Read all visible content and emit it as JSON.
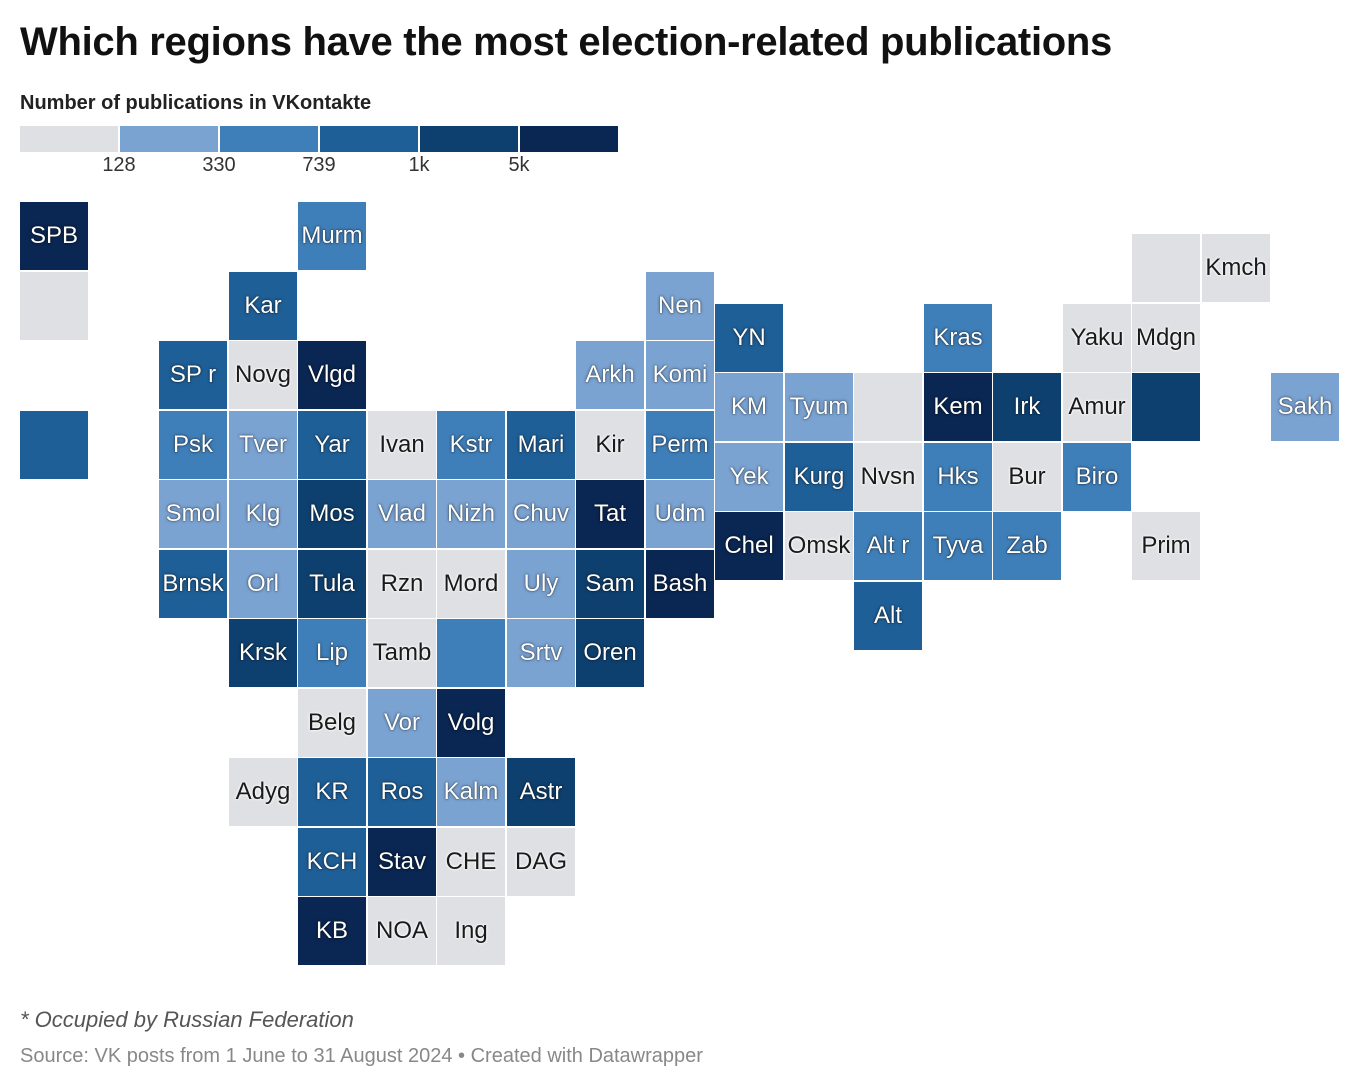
{
  "title": "Which regions have the most election-related publications",
  "legend": {
    "title": "Number of publications in VKontakte",
    "bins": [
      {
        "color": "#dfe0e4"
      },
      {
        "color": "#7aa3d2"
      },
      {
        "color": "#3f7fb9"
      },
      {
        "color": "#1f5f97"
      },
      {
        "color": "#0e406f"
      },
      {
        "color": "#0a2652"
      }
    ],
    "ticks": [
      "128",
      "330",
      "739",
      "1k",
      "5k"
    ]
  },
  "regions": [
    {
      "label": "SPB",
      "bin": 5,
      "col": 0,
      "row": 0,
      "dy": 0
    },
    {
      "label": "",
      "bin": 0,
      "col": 0,
      "row": 1,
      "dy": 0
    },
    {
      "label": "",
      "bin": 3,
      "col": 0,
      "row": 3,
      "dy": 0
    },
    {
      "label": "Murm",
      "bin": 2,
      "col": 4,
      "row": 0,
      "dy": 0
    },
    {
      "label": "Kar",
      "bin": 3,
      "col": 3,
      "row": 1,
      "dy": 0
    },
    {
      "label": "SP r",
      "bin": 3,
      "col": 2,
      "row": 2,
      "dy": 0
    },
    {
      "label": "Novg",
      "bin": 0,
      "col": 3,
      "row": 2,
      "dy": 0
    },
    {
      "label": "Vlgd",
      "bin": 5,
      "col": 4,
      "row": 2,
      "dy": 0
    },
    {
      "label": "Psk",
      "bin": 2,
      "col": 2,
      "row": 3,
      "dy": 0
    },
    {
      "label": "Tver",
      "bin": 1,
      "col": 3,
      "row": 3,
      "dy": 0
    },
    {
      "label": "Yar",
      "bin": 3,
      "col": 4,
      "row": 3,
      "dy": 0
    },
    {
      "label": "Ivan",
      "bin": 0,
      "col": 5,
      "row": 3,
      "dy": 0
    },
    {
      "label": "Kstr",
      "bin": 2,
      "col": 6,
      "row": 3,
      "dy": 0
    },
    {
      "label": "Mari",
      "bin": 3,
      "col": 7,
      "row": 3,
      "dy": 0
    },
    {
      "label": "Kir",
      "bin": 0,
      "col": 8,
      "row": 3,
      "dy": 0
    },
    {
      "label": "Perm",
      "bin": 2,
      "col": 9,
      "row": 3,
      "dy": 0
    },
    {
      "label": "Arkh",
      "bin": 1,
      "col": 8,
      "row": 2,
      "dy": 0
    },
    {
      "label": "Komi",
      "bin": 1,
      "col": 9,
      "row": 2,
      "dy": 0
    },
    {
      "label": "Nen",
      "bin": 1,
      "col": 9,
      "row": 1,
      "dy": 0
    },
    {
      "label": "Smol",
      "bin": 1,
      "col": 2,
      "row": 4,
      "dy": 0
    },
    {
      "label": "Klg",
      "bin": 1,
      "col": 3,
      "row": 4,
      "dy": 0
    },
    {
      "label": "Mos",
      "bin": 4,
      "col": 4,
      "row": 4,
      "dy": 0
    },
    {
      "label": "Vlad",
      "bin": 1,
      "col": 5,
      "row": 4,
      "dy": 0
    },
    {
      "label": "Nizh",
      "bin": 1,
      "col": 6,
      "row": 4,
      "dy": 0
    },
    {
      "label": "Chuv",
      "bin": 1,
      "col": 7,
      "row": 4,
      "dy": 0
    },
    {
      "label": "Tat",
      "bin": 5,
      "col": 8,
      "row": 4,
      "dy": 0
    },
    {
      "label": "Udm",
      "bin": 1,
      "col": 9,
      "row": 4,
      "dy": 0
    },
    {
      "label": "Brnsk",
      "bin": 3,
      "col": 2,
      "row": 5,
      "dy": 0
    },
    {
      "label": "Orl",
      "bin": 1,
      "col": 3,
      "row": 5,
      "dy": 0
    },
    {
      "label": "Tula",
      "bin": 4,
      "col": 4,
      "row": 5,
      "dy": 0
    },
    {
      "label": "Rzn",
      "bin": 0,
      "col": 5,
      "row": 5,
      "dy": 0
    },
    {
      "label": "Mord",
      "bin": 0,
      "col": 6,
      "row": 5,
      "dy": 0
    },
    {
      "label": "Uly",
      "bin": 1,
      "col": 7,
      "row": 5,
      "dy": 0
    },
    {
      "label": "Sam",
      "bin": 4,
      "col": 8,
      "row": 5,
      "dy": 0
    },
    {
      "label": "Bash",
      "bin": 5,
      "col": 9,
      "row": 5,
      "dy": 0
    },
    {
      "label": "Krsk",
      "bin": 4,
      "col": 3,
      "row": 6,
      "dy": 0
    },
    {
      "label": "Lip",
      "bin": 2,
      "col": 4,
      "row": 6,
      "dy": 0
    },
    {
      "label": "Tamb",
      "bin": 0,
      "col": 5,
      "row": 6,
      "dy": 0
    },
    {
      "label": "",
      "bin": 2,
      "col": 6,
      "row": 6,
      "dy": 0
    },
    {
      "label": "Srtv",
      "bin": 1,
      "col": 7,
      "row": 6,
      "dy": 0
    },
    {
      "label": "Oren",
      "bin": 4,
      "col": 8,
      "row": 6,
      "dy": 0
    },
    {
      "label": "Belg",
      "bin": 0,
      "col": 4,
      "row": 7,
      "dy": 0
    },
    {
      "label": "Vor",
      "bin": 1,
      "col": 5,
      "row": 7,
      "dy": 0
    },
    {
      "label": "Volg",
      "bin": 5,
      "col": 6,
      "row": 7,
      "dy": 0
    },
    {
      "label": "Adyg",
      "bin": 0,
      "col": 3,
      "row": 8,
      "dy": 0
    },
    {
      "label": "KR",
      "bin": 3,
      "col": 4,
      "row": 8,
      "dy": 0
    },
    {
      "label": "Ros",
      "bin": 3,
      "col": 5,
      "row": 8,
      "dy": 0
    },
    {
      "label": "Kalm",
      "bin": 1,
      "col": 6,
      "row": 8,
      "dy": 0
    },
    {
      "label": "Astr",
      "bin": 4,
      "col": 7,
      "row": 8,
      "dy": 0
    },
    {
      "label": "KCH",
      "bin": 3,
      "col": 4,
      "row": 9,
      "dy": 0
    },
    {
      "label": "Stav",
      "bin": 5,
      "col": 5,
      "row": 9,
      "dy": 0
    },
    {
      "label": "CHE",
      "bin": 0,
      "col": 6,
      "row": 9,
      "dy": 0
    },
    {
      "label": "DAG",
      "bin": 0,
      "col": 7,
      "row": 9,
      "dy": 0
    },
    {
      "label": "KB",
      "bin": 5,
      "col": 4,
      "row": 10,
      "dy": 0
    },
    {
      "label": "NOA",
      "bin": 0,
      "col": 5,
      "row": 10,
      "dy": 0
    },
    {
      "label": "Ing",
      "bin": 0,
      "col": 6,
      "row": 10,
      "dy": 0
    },
    {
      "label": "YN",
      "bin": 3,
      "col": 10,
      "row": 1,
      "dy": 1
    },
    {
      "label": "KM",
      "bin": 1,
      "col": 10,
      "row": 2,
      "dy": 1
    },
    {
      "label": "Tyum",
      "bin": 1,
      "col": 11,
      "row": 2,
      "dy": 1
    },
    {
      "label": "",
      "bin": 0,
      "col": 12,
      "row": 2,
      "dy": 1
    },
    {
      "label": "Yek",
      "bin": 1,
      "col": 10,
      "row": 3,
      "dy": 1
    },
    {
      "label": "Kurg",
      "bin": 3,
      "col": 11,
      "row": 3,
      "dy": 1
    },
    {
      "label": "Nvsn",
      "bin": 0,
      "col": 12,
      "row": 3,
      "dy": 1
    },
    {
      "label": "Chel",
      "bin": 5,
      "col": 10,
      "row": 4,
      "dy": 1
    },
    {
      "label": "Omsk",
      "bin": 0,
      "col": 11,
      "row": 4,
      "dy": 1
    },
    {
      "label": "Alt r",
      "bin": 2,
      "col": 12,
      "row": 4,
      "dy": 1
    },
    {
      "label": "Alt",
      "bin": 3,
      "col": 12,
      "row": 5,
      "dy": 1
    },
    {
      "label": "Kras",
      "bin": 2,
      "col": 13,
      "row": 1,
      "dy": 1
    },
    {
      "label": "Kem",
      "bin": 5,
      "col": 13,
      "row": 2,
      "dy": 1
    },
    {
      "label": "Irk",
      "bin": 4,
      "col": 14,
      "row": 2,
      "dy": 1
    },
    {
      "label": "Hks",
      "bin": 2,
      "col": 13,
      "row": 3,
      "dy": 1
    },
    {
      "label": "Bur",
      "bin": 0,
      "col": 14,
      "row": 3,
      "dy": 1
    },
    {
      "label": "Tyva",
      "bin": 2,
      "col": 13,
      "row": 4,
      "dy": 1
    },
    {
      "label": "Zab",
      "bin": 2,
      "col": 14,
      "row": 4,
      "dy": 1
    },
    {
      "label": "Yaku",
      "bin": 0,
      "col": 15,
      "row": 1,
      "dy": 1
    },
    {
      "label": "Amur",
      "bin": 0,
      "col": 15,
      "row": 2,
      "dy": 1
    },
    {
      "label": "Biro",
      "bin": 2,
      "col": 15,
      "row": 3,
      "dy": 1
    },
    {
      "label": "",
      "bin": 0,
      "col": 16,
      "row": 0,
      "dy": 1
    },
    {
      "label": "Mdgn",
      "bin": 0,
      "col": 16,
      "row": 1,
      "dy": 1
    },
    {
      "label": "",
      "bin": 4,
      "col": 16,
      "row": 2,
      "dy": 1
    },
    {
      "label": "Prim",
      "bin": 0,
      "col": 16,
      "row": 4,
      "dy": 1
    },
    {
      "label": "Kmch",
      "bin": 0,
      "col": 17,
      "row": 0,
      "dy": 1
    },
    {
      "label": "Sakh",
      "bin": 1,
      "col": 18,
      "row": 2,
      "dy": 1
    }
  ],
  "note": "* Occupied by Russian Federation",
  "source": "Source: VK posts from 1 June to 31 August 2024 • Created with Datawrapper"
}
